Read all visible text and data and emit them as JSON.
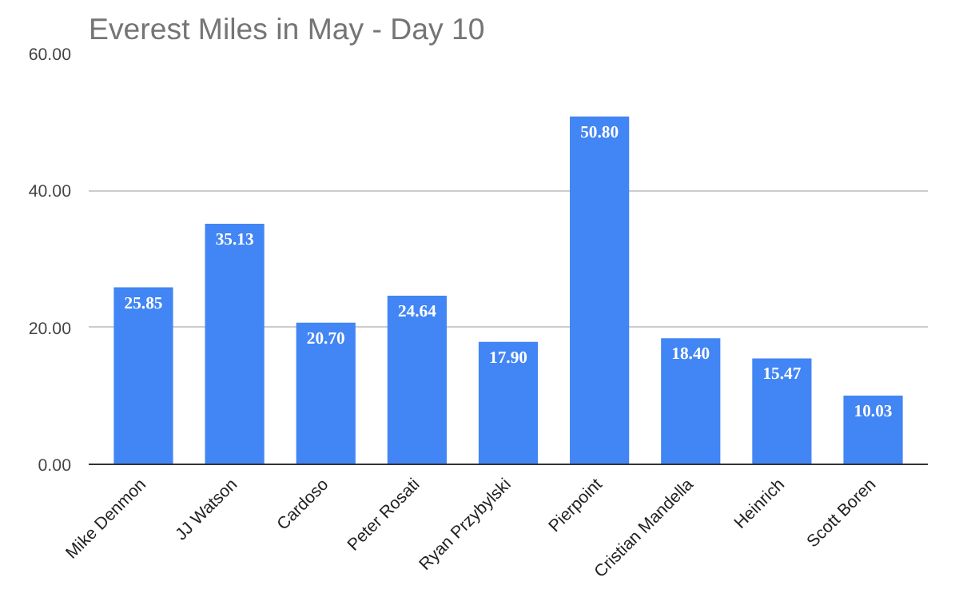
{
  "chart_data": {
    "type": "bar",
    "title": "Everest Miles in May - Day 10",
    "categories": [
      "Mike Denmon",
      "JJ Watson",
      "Cardoso",
      "Peter Rosati",
      "Ryan Przybylski",
      "Pierpoint",
      "Cristian Mandella",
      "Heinrich",
      "Scott Boren"
    ],
    "values": [
      25.85,
      35.13,
      20.7,
      24.64,
      17.9,
      50.8,
      18.4,
      15.47,
      10.03
    ],
    "value_labels": [
      "25.85",
      "35.13",
      "20.70",
      "24.64",
      "17.90",
      "50.80",
      "18.40",
      "15.47",
      "10.03"
    ],
    "color": "#4285f4",
    "ylim": [
      0,
      60
    ],
    "yticks": [
      {
        "value": 0,
        "label": "0.00"
      },
      {
        "value": 20,
        "label": "20.00"
      },
      {
        "value": 40,
        "label": "40.00"
      },
      {
        "value": 60,
        "label": "60.00"
      }
    ],
    "grid": "y"
  }
}
